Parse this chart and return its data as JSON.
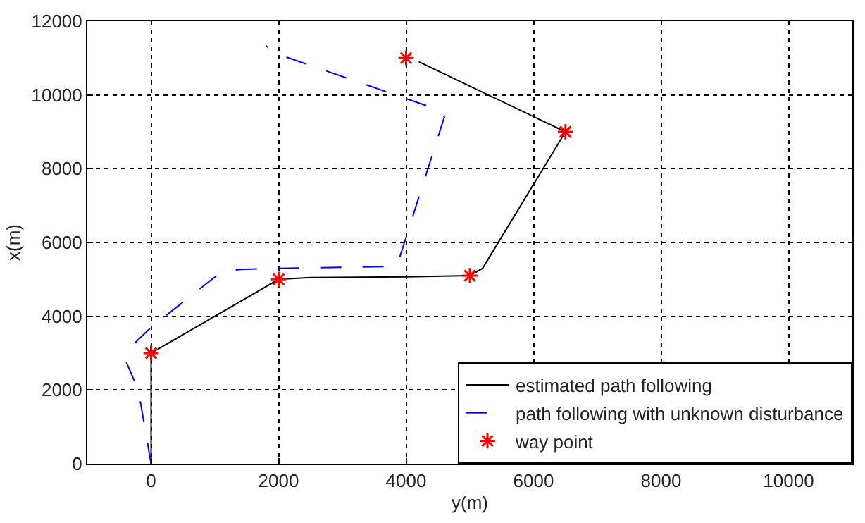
{
  "chart_data": {
    "type": "line",
    "xlabel": "y(m)",
    "ylabel": "x(m)",
    "xlim": [
      -1000,
      11000
    ],
    "xticks": [
      0,
      2000,
      4000,
      6000,
      8000,
      10000
    ],
    "ylim": [
      0,
      12000
    ],
    "yticks": [
      0,
      2000,
      4000,
      6000,
      8000,
      10000,
      12000
    ],
    "grid": true,
    "legend": "bottom right",
    "series": [
      {
        "name": "estimated path following",
        "color": "#000000",
        "line_style": "solid",
        "marker": "none",
        "x": [
          0,
          0,
          2000,
          2500,
          4000,
          5000,
          5200,
          6500,
          4200
        ],
        "values": [
          0,
          3000,
          5000,
          5050,
          5070,
          5100,
          5300,
          9000,
          10900
        ]
      },
      {
        "name": "path following with unknown disturbance",
        "color": "#0000ff",
        "line_style": "dashed",
        "marker": "none",
        "x": [
          0,
          -100,
          -200,
          -400,
          -300,
          0,
          1100,
          1400,
          2000,
          3800,
          3900,
          4600,
          4500,
          4000,
          2000,
          1800
        ],
        "values": [
          0,
          1000,
          2000,
          2800,
          3200,
          3700,
          5200,
          5270,
          5300,
          5350,
          5600,
          9400,
          9600,
          9900,
          11100,
          11330
        ]
      },
      {
        "name": "way point",
        "type": "scatter",
        "color": "#ff0000",
        "marker": "cross",
        "x": [
          0,
          2000,
          5000,
          6500,
          4000
        ],
        "values": [
          3000,
          5000,
          5100,
          9000,
          11000
        ]
      }
    ]
  }
}
